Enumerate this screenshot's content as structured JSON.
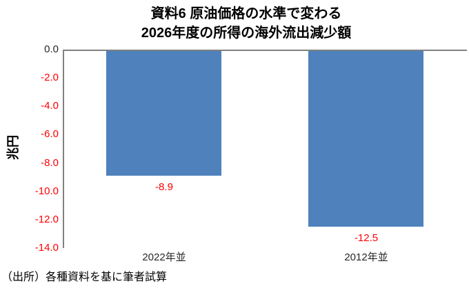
{
  "chart_data": {
    "type": "bar",
    "title_line1": "資料6 原油価格の水準で変わる",
    "title_line2": "2026年度の所得の海外流出減少額",
    "categories": [
      "2022年並",
      "2012年並"
    ],
    "values": [
      -8.9,
      -12.5
    ],
    "data_labels": [
      "-8.9",
      "-12.5"
    ],
    "xlabel": "",
    "ylabel": "兆円",
    "ylim": [
      -14.0,
      0.0
    ],
    "yticks": [
      0,
      -2,
      -4,
      -6,
      -8,
      -10,
      -12,
      -14
    ],
    "ytick_labels": [
      "0.0",
      "-2.0",
      "-4.0",
      "-6.0",
      "-8.0",
      "-10.0",
      "-12.0",
      "-14.0"
    ],
    "grid": false,
    "legend": "none",
    "bar_color": "#4F81BD",
    "negative_label_color": "#FF0000",
    "zero_label_color": "#262626",
    "axis_color": "#808080"
  },
  "source_note": "（出所）各種資料を基に筆者試算"
}
